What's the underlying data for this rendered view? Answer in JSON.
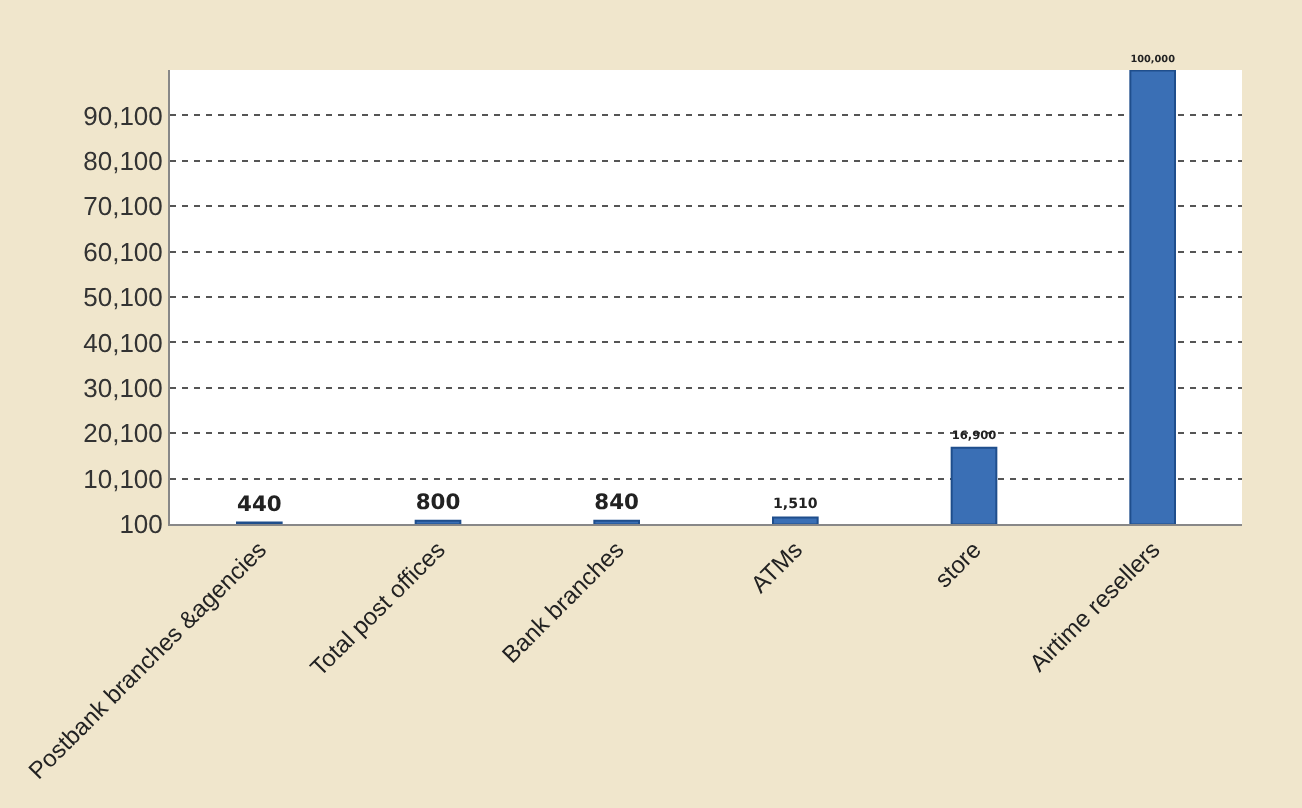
{
  "chart_data": {
    "type": "bar",
    "categories": [
      "Postbank branches &agencies",
      "Total post offices",
      "Bank branches",
      "ATMs",
      "store",
      "Airtime resellers"
    ],
    "values": [
      440,
      800,
      840,
      1510,
      16900,
      100000
    ],
    "value_labels": [
      "440",
      "800",
      "840",
      "1,510",
      "16,900",
      "100,000"
    ],
    "color": "#3a6fb5",
    "ylim": [
      100,
      100100
    ],
    "yticks": [
      {
        "value": 100,
        "label": "100"
      },
      {
        "value": 10100,
        "label": "10,100"
      },
      {
        "value": 20100,
        "label": "20,100"
      },
      {
        "value": 30100,
        "label": "30,100"
      },
      {
        "value": 40100,
        "label": "40,100"
      },
      {
        "value": 50100,
        "label": "50,100"
      },
      {
        "value": 60100,
        "label": "60,100"
      },
      {
        "value": 70100,
        "label": "70,100"
      },
      {
        "value": 80100,
        "label": "80,100"
      },
      {
        "value": 90100,
        "label": "90,100"
      }
    ],
    "grid": "y"
  }
}
